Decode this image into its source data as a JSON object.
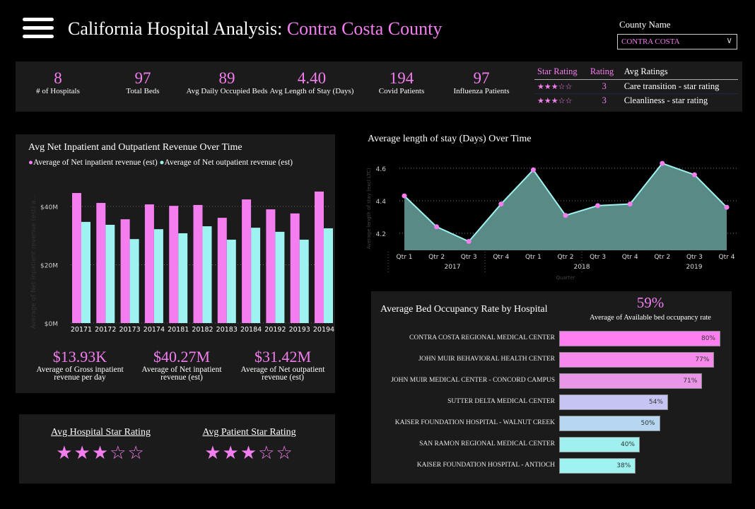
{
  "header": {
    "title_prefix": "California Hospital Analysis: ",
    "title_county": "Contra Costa County",
    "menu_icon": "hamburger-icon"
  },
  "filter": {
    "label": "County Name",
    "value": "CONTRA COSTA"
  },
  "kpis": [
    {
      "value": "8",
      "label": "# of Hospitals"
    },
    {
      "value": "97",
      "label": "Total Beds"
    },
    {
      "value": "89",
      "label": "Avg Daily Occupied Beds"
    },
    {
      "value": "4.40",
      "label": "Avg Length of Stay (Days)"
    },
    {
      "value": "194",
      "label": "Covid Patients"
    },
    {
      "value": "97",
      "label": "Influenza Patients"
    }
  ],
  "star_table": {
    "headers": [
      "Star Rating",
      "Rating",
      "Avg Ratings"
    ],
    "rows": [
      {
        "stars": "★★★☆☆",
        "rating": "3",
        "name": "Care transition - star rating"
      },
      {
        "stars": "★★★☆☆",
        "rating": "3",
        "name": "Cleanliness - star rating"
      }
    ]
  },
  "revenue": {
    "title": "Avg Net Inpatient and Outpatient Revenue Over Time",
    "kpis": [
      {
        "value": "$13.93K",
        "label": "Average of Gross inpatient revenue per day"
      },
      {
        "value": "$40.27M",
        "label": "Average of Net inpatient revenue (est)"
      },
      {
        "value": "$31.42M",
        "label": "Average of Net outpatient revenue (est)"
      }
    ]
  },
  "stay": {
    "title": "Average length of stay (Days) Over Time"
  },
  "occupancy": {
    "title": "Average Bed Occupancy Rate by Hospital",
    "kpi_value": "59%",
    "kpi_label": "Average of Available bed occupancy rate"
  },
  "ratings": {
    "hospital_label": "Avg Hospital Star Rating",
    "hospital_stars": "★★★☆☆",
    "patient_label": "Avg Patient Star Rating",
    "patient_stars": "★★★☆☆",
    "hospital_value": 3,
    "patient_value": 3
  },
  "colors": {
    "pink": "#f47ef0",
    "cyan": "#9ef2f0",
    "area": "#5a8a86"
  },
  "chart_data": [
    {
      "type": "bar",
      "title": "Avg Net Inpatient and Outpatient Revenue Over Time",
      "categories": [
        "20171",
        "20172",
        "20173",
        "20174",
        "20181",
        "20182",
        "20183",
        "20184",
        "20192",
        "20193",
        "20194"
      ],
      "series": [
        {
          "name": "Average of Net inpatient revenue (est)",
          "values": [
            44.6,
            41.2,
            35.6,
            40.7,
            40.2,
            40.5,
            36.1,
            42.4,
            39.0,
            37.6,
            45.1
          ]
        },
        {
          "name": "Average of Net outpatient revenue (est)",
          "values": [
            34.7,
            33.7,
            28.8,
            32.2,
            30.8,
            33.2,
            28.6,
            32.7,
            31.3,
            28.6,
            32.5
          ]
        }
      ],
      "unit": "M",
      "yticks": [
        "$0M",
        "$20M",
        "$40M"
      ],
      "ylim": [
        0,
        45
      ],
      "ylabel": "Average of Net inpatient revenue (est) a...",
      "grid": true,
      "legend": "top-left"
    },
    {
      "type": "area",
      "title": "Average length of stay (Days) Over Time",
      "categories": [
        "Qtr 1",
        "Qtr 2",
        "Qtr 3",
        "Qtr 4",
        "Qtr 1",
        "Qtr 2",
        "Qtr 3",
        "Qtr 4",
        "Qtr 2",
        "Qtr 3",
        "Qtr 4"
      ],
      "years": [
        "2017",
        "2018",
        "2019"
      ],
      "values": [
        4.43,
        4.24,
        4.15,
        4.38,
        4.59,
        4.31,
        4.37,
        4.38,
        4.63,
        4.56,
        4.36
      ],
      "yticks": [
        "4.2",
        "4.4",
        "4.6"
      ],
      "ylim": [
        4.1,
        4.65
      ],
      "xlabel": "Quarter",
      "ylabel": "Average length of stay (excl LTC)",
      "grid": true
    },
    {
      "type": "bar",
      "orientation": "horizontal",
      "title": "Average Bed Occupancy Rate by Hospital",
      "categories": [
        "CONTRA COSTA REGIONAL MEDICAL CENTER",
        "JOHN MUIR BEHAVIORAL HEALTH CENTER",
        "JOHN MUIR MEDICAL CENTER - CONCORD CAMPUS",
        "SUTTER DELTA MEDICAL CENTER",
        "KAISER FOUNDATION HOSPITAL - WALNUT CREEK",
        "SAN RAMON REGIONAL MEDICAL CENTER",
        "KAISER FOUNDATION HOSPITAL - ANTIOCH"
      ],
      "values": [
        80,
        77,
        71,
        54,
        50,
        40,
        38
      ],
      "labels": [
        "80%",
        "77%",
        "71%",
        "54%",
        "50%",
        "40%",
        "38%"
      ],
      "colors": [
        "#ff7ff0",
        "#f789ec",
        "#e996e8",
        "#c6c4f2",
        "#b6d6f2",
        "#a0f0f0",
        "#9ef2f0"
      ]
    }
  ]
}
